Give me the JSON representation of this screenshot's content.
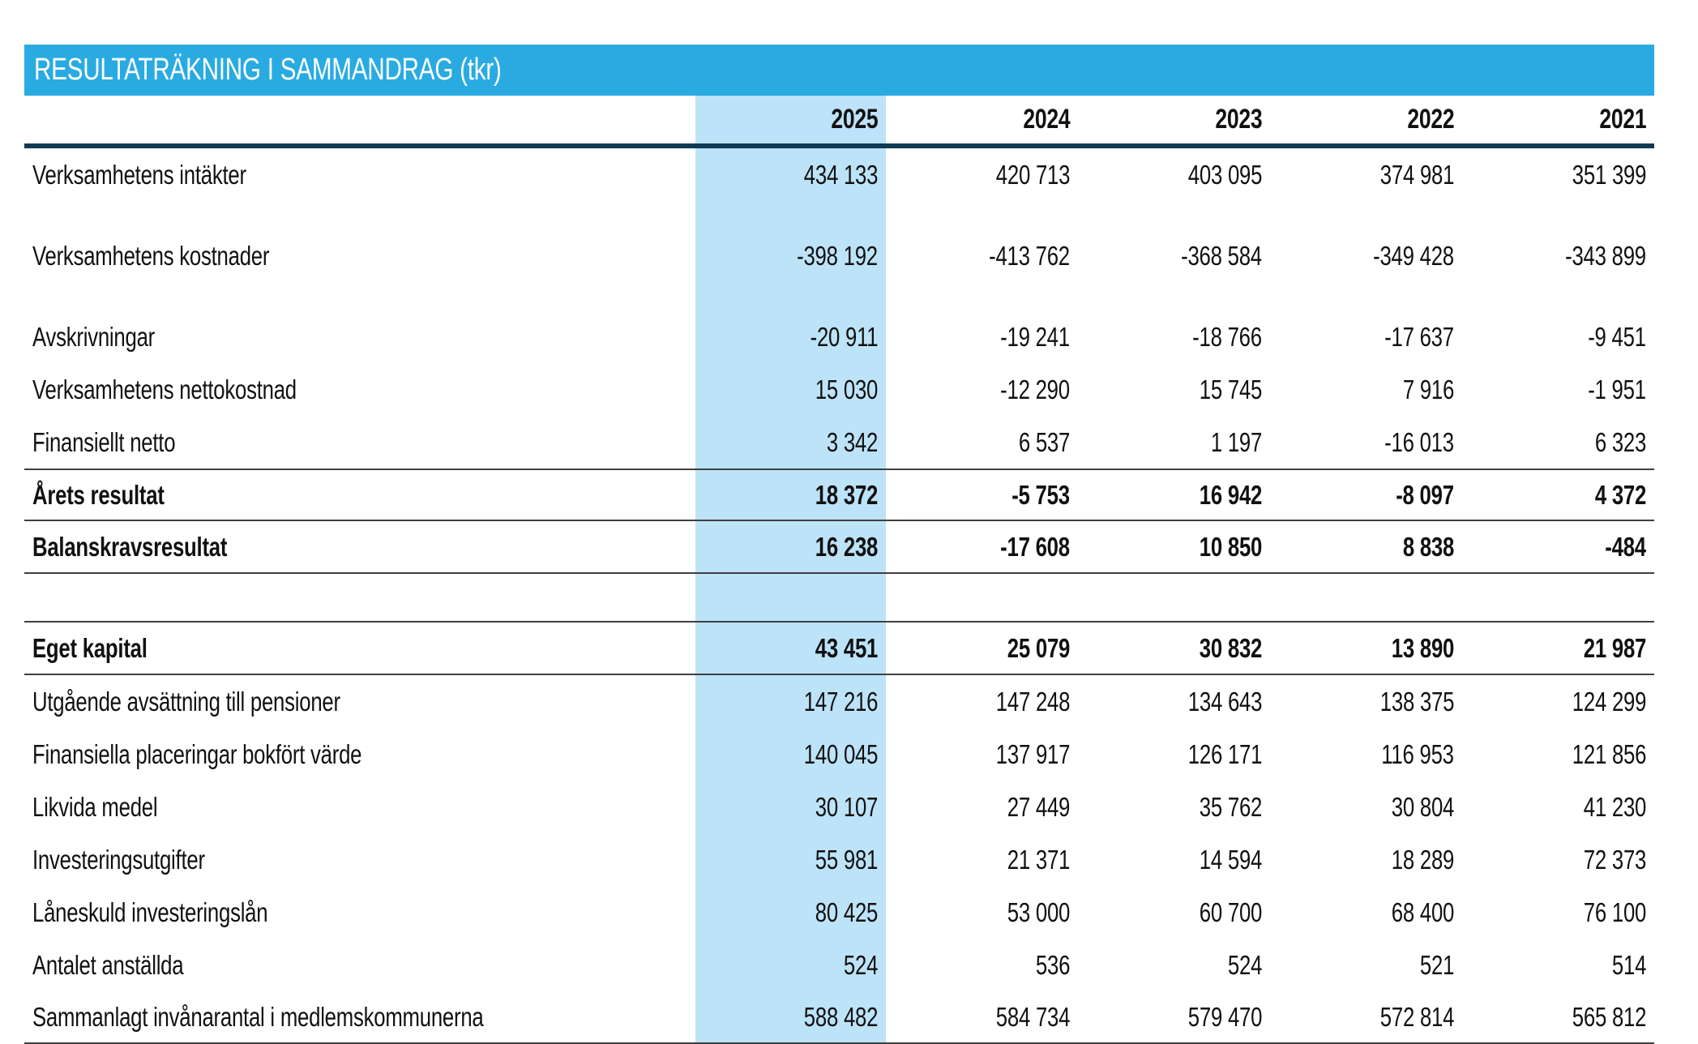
{
  "title": "RESULTATRÄKNING I SAMMANDRAG (tkr)",
  "colors": {
    "banner_blue": "#29ABE2",
    "highlight_column_blue": "#BDE3F8",
    "header_rule_navy": "#0E3A53",
    "thin_rule_gray": "#3f3f3f"
  },
  "table": {
    "years": [
      "2025",
      "2024",
      "2023",
      "2022",
      "2021"
    ],
    "highlighted_year": "2025",
    "rows": [
      {
        "label": "Verksamhetens intäkter",
        "values": [
          "434 133",
          "420 713",
          "403 095",
          "374 981",
          "351 399"
        ]
      },
      {
        "spacer": true,
        "size": "sm"
      },
      {
        "label": "Verksamhetens kostnader",
        "values": [
          "-398 192",
          "-413 762",
          "-368 584",
          "-349 428",
          "-343 899"
        ]
      },
      {
        "spacer": true,
        "size": "sm"
      },
      {
        "label": "Avskrivningar",
        "values": [
          "-20 911",
          "-19 241",
          "-18 766",
          "-17 637",
          "-9 451"
        ]
      },
      {
        "label": "Verksamhetens nettokostnad",
        "values": [
          "15 030",
          "-12 290",
          "15 745",
          "7 916",
          "-1 951"
        ]
      },
      {
        "label": "Finansiellt netto",
        "values": [
          "3 342",
          "6 537",
          "1 197",
          "-16 013",
          "6 323"
        ]
      },
      {
        "label": "Årets resultat",
        "values": [
          "18 372",
          "-5 753",
          "16 942",
          "-8 097",
          "4 372"
        ],
        "bold": true,
        "rule_above": true,
        "rule_below": true
      },
      {
        "label": "Balanskravsresultat",
        "values": [
          "16 238",
          "-17 608",
          "10 850",
          "8 838",
          "-484"
        ],
        "bold": true,
        "rule_below": true
      },
      {
        "spacer": true,
        "size": "lg",
        "rule_below": true
      },
      {
        "label": "Eget kapital",
        "values": [
          "43 451",
          "25 079",
          "30 832",
          "13 890",
          "21 987"
        ],
        "bold": true,
        "rule_below": true
      },
      {
        "label": "Utgående avsättning till pensioner",
        "values": [
          "147 216",
          "147 248",
          "134 643",
          "138 375",
          "124 299"
        ]
      },
      {
        "label": "Finansiella placeringar bokfört värde",
        "values": [
          "140 045",
          "137 917",
          "126 171",
          "116 953",
          "121 856"
        ]
      },
      {
        "label": "Likvida medel",
        "values": [
          "30 107",
          "27 449",
          "35 762",
          "30 804",
          "41 230"
        ]
      },
      {
        "label": "Investeringsutgifter",
        "values": [
          "55 981",
          "21 371",
          "14 594",
          "18 289",
          "72 373"
        ]
      },
      {
        "label": "Låneskuld investeringslån",
        "values": [
          "80 425",
          "53 000",
          "60 700",
          "68 400",
          "76 100"
        ]
      },
      {
        "label": "Antalet anställda",
        "values": [
          "524",
          "536",
          "524",
          "521",
          "514"
        ]
      },
      {
        "label": "Sammanlagt invånarantal i medlemskommunerna",
        "values": [
          "588 482",
          "584 734",
          "579 470",
          "572 814",
          "565 812"
        ],
        "rule_below": true
      }
    ]
  }
}
